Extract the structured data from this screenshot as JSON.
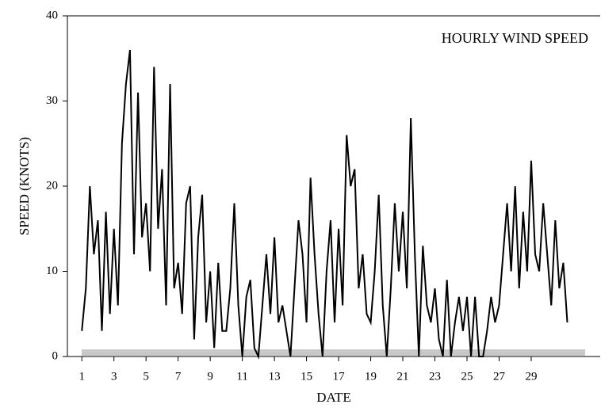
{
  "chart_data": {
    "type": "line",
    "annotation": "HOURLY WIND SPEED",
    "xlabel": "DATE",
    "ylabel": "SPEED (KNOTS)",
    "color": "#000000",
    "x": [
      1,
      1.25,
      1.5,
      1.75,
      2,
      2.25,
      2.5,
      2.75,
      3,
      3.25,
      3.5,
      3.75,
      4,
      4.25,
      4.5,
      4.75,
      5,
      5.25,
      5.5,
      5.75,
      6,
      6.25,
      6.5,
      6.75,
      7,
      7.25,
      7.5,
      7.75,
      8,
      8.25,
      8.5,
      8.75,
      9,
      9.25,
      9.5,
      9.75,
      10,
      10.25,
      10.5,
      10.75,
      11,
      11.25,
      11.5,
      11.75,
      12,
      12.25,
      12.5,
      12.75,
      13,
      13.25,
      13.5,
      13.75,
      14,
      14.25,
      14.5,
      14.75,
      15,
      15.25,
      15.5,
      15.75,
      16,
      16.25,
      16.5,
      16.75,
      17,
      17.25,
      17.5,
      17.75,
      18,
      18.25,
      18.5,
      18.75,
      19,
      19.25,
      19.5,
      19.75,
      20,
      20.25,
      20.5,
      20.75,
      21,
      21.25,
      21.5,
      21.75,
      22,
      22.25,
      22.5,
      22.75,
      23,
      23.25,
      23.5,
      23.75,
      24,
      24.25,
      24.5,
      24.75,
      25,
      25.25,
      25.5,
      25.75,
      26,
      26.25,
      26.5,
      26.75,
      27,
      27.25,
      27.5,
      27.75,
      28,
      28.25,
      28.5,
      28.75,
      29,
      29.25,
      29.5,
      29.75,
      30,
      30.25,
      30.5,
      30.75,
      31,
      31.25
    ],
    "values": [
      3,
      8,
      20,
      12,
      16,
      3,
      17,
      5,
      15,
      6,
      25,
      32,
      36,
      12,
      31,
      14,
      18,
      10,
      34,
      15,
      22,
      6,
      32,
      8,
      11,
      5,
      18,
      20,
      2,
      14,
      19,
      4,
      10,
      1,
      11,
      3,
      3,
      8,
      18,
      6,
      0,
      7,
      9,
      1,
      0,
      6,
      12,
      5,
      14,
      4,
      6,
      3,
      0,
      8,
      16,
      12,
      4,
      21,
      12,
      5,
      0,
      10,
      16,
      4,
      15,
      6,
      26,
      20,
      22,
      8,
      12,
      5,
      4,
      10,
      19,
      6,
      0,
      8,
      18,
      10,
      17,
      8,
      28,
      12,
      0,
      13,
      6,
      4,
      8,
      2,
      0,
      9,
      0,
      4,
      7,
      3,
      7,
      0,
      7,
      0,
      0,
      3,
      7,
      4,
      6,
      12,
      18,
      10,
      20,
      8,
      17,
      10,
      23,
      12,
      10,
      18,
      12,
      6,
      16,
      8,
      11,
      4
    ],
    "xlim": [
      0.1,
      33.3
    ],
    "xticks": [
      1,
      3,
      5,
      7,
      9,
      11,
      13,
      15,
      17,
      19,
      21,
      23,
      25,
      27,
      29
    ],
    "ylim": [
      0,
      40
    ],
    "yticks": [
      0,
      10,
      20,
      30,
      40
    ]
  }
}
